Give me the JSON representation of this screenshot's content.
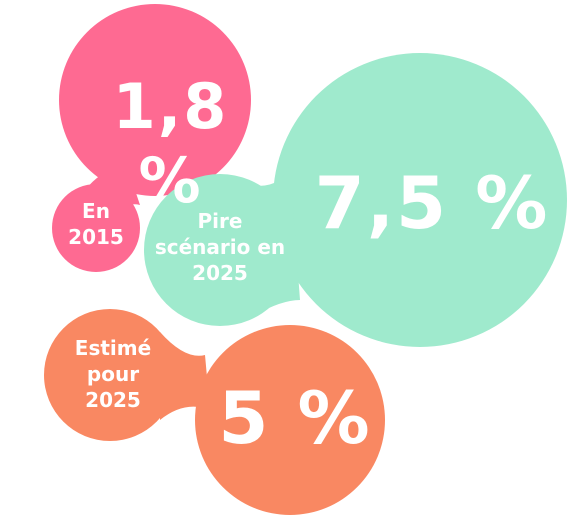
{
  "colors": {
    "pink": "#fe6a92",
    "mint": "#9feacd",
    "orange": "#f98862"
  },
  "bubbles": {
    "pink": {
      "value": "1,8 %",
      "label": "En\n2015"
    },
    "mint": {
      "value": "7,5 %",
      "label": "Pire\nscénario en\n2025"
    },
    "orange": {
      "value": "5 %",
      "label": "Estimé\npour\n2025"
    }
  }
}
